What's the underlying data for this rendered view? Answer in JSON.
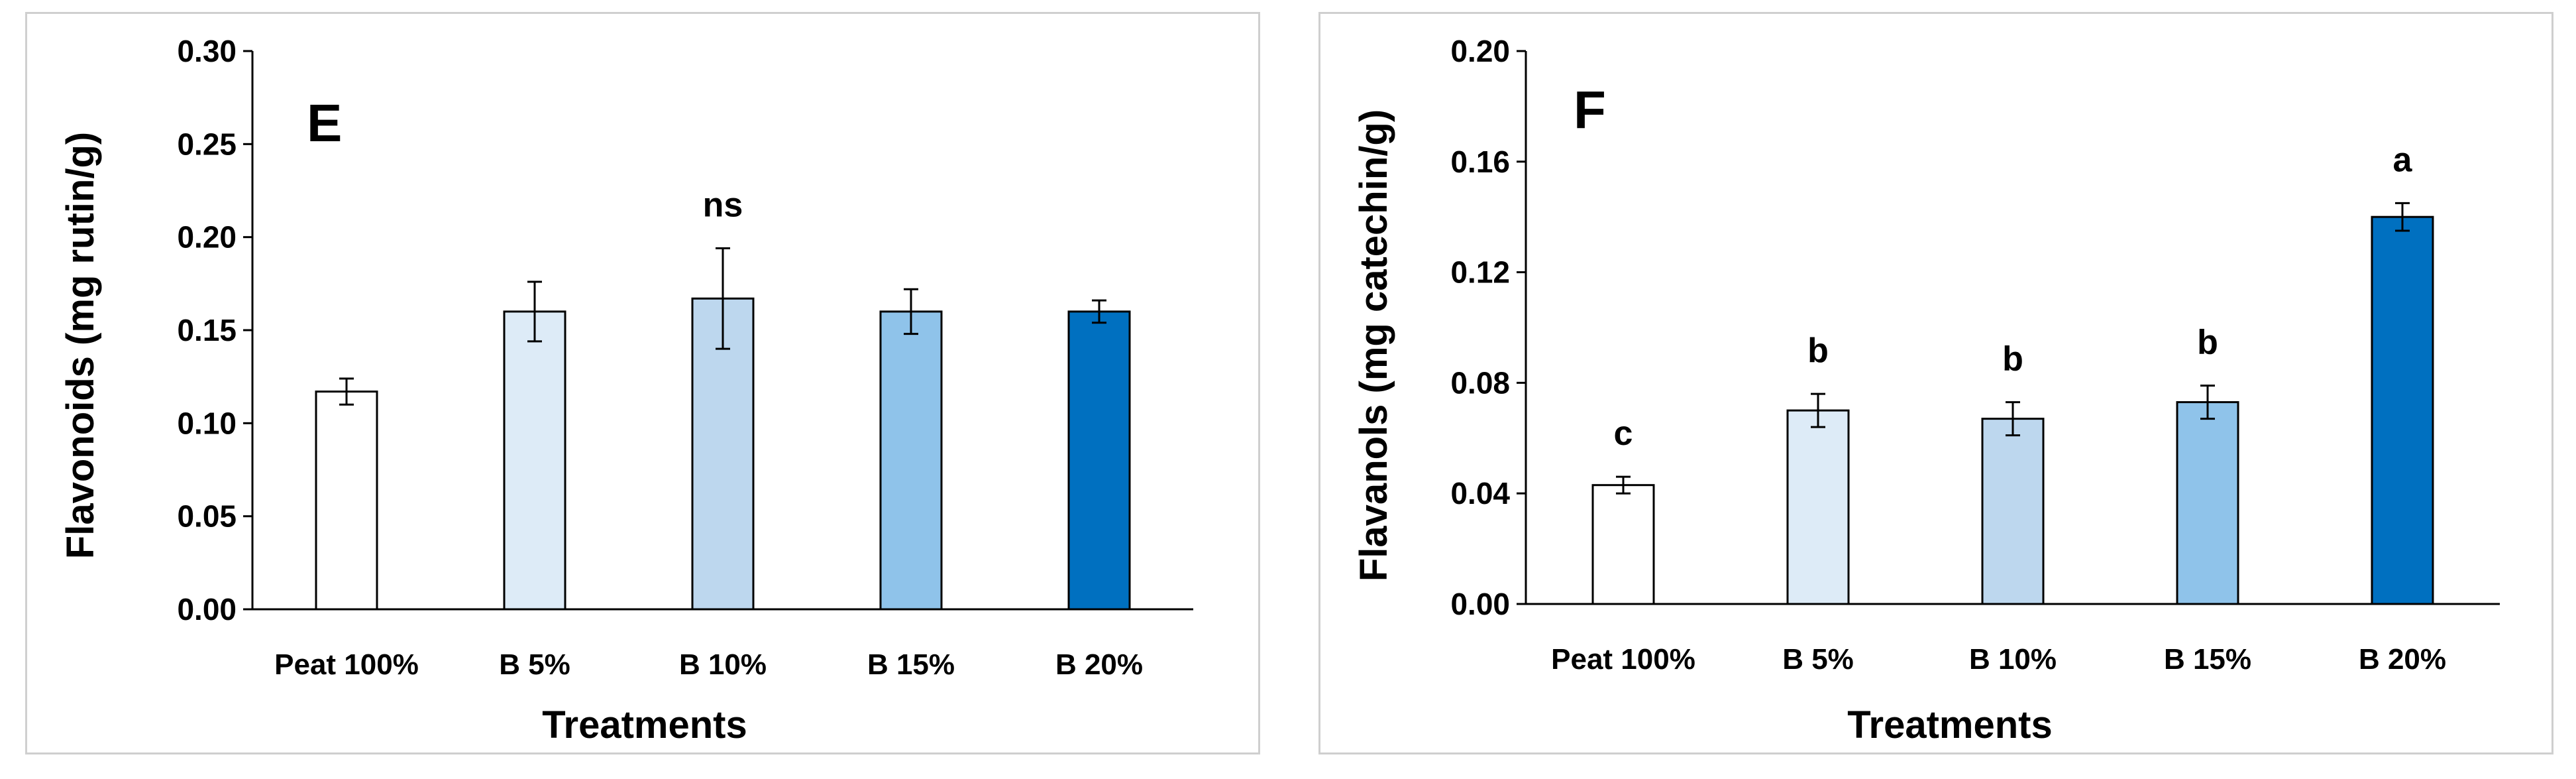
{
  "chart_data": [
    {
      "type": "bar",
      "panel_label": "E",
      "title": "",
      "xlabel": "Treatments",
      "ylabel": "Flavonoids (mg rutin/g)",
      "categories": [
        "Peat 100%",
        "B 5%",
        "B 10%",
        "B 15%",
        "B 20%"
      ],
      "values": [
        0.117,
        0.16,
        0.167,
        0.16,
        0.16
      ],
      "errors": [
        0.007,
        0.016,
        0.027,
        0.012,
        0.006
      ],
      "significance": [
        "",
        "",
        "ns",
        "",
        ""
      ],
      "ylim": [
        0,
        0.3
      ],
      "yticks": [
        "0.00",
        "0.05",
        "0.10",
        "0.15",
        "0.20",
        "0.25",
        "0.30"
      ],
      "bar_colors": [
        "#ffffff",
        "#ddebf7",
        "#bdd7ee",
        "#8fc3ea",
        "#0070c0"
      ],
      "grid": false
    },
    {
      "type": "bar",
      "panel_label": "F",
      "title": "",
      "xlabel": "Treatments",
      "ylabel": "Flavanols (mg catechin/g)",
      "categories": [
        "Peat 100%",
        "B 5%",
        "B 10%",
        "B 15%",
        "B 20%"
      ],
      "values": [
        0.043,
        0.07,
        0.067,
        0.073,
        0.14
      ],
      "errors": [
        0.003,
        0.006,
        0.006,
        0.006,
        0.005
      ],
      "significance": [
        "c",
        "b",
        "b",
        "b",
        "a"
      ],
      "ylim": [
        0,
        0.2
      ],
      "yticks": [
        "0.00",
        "0.04",
        "0.08",
        "0.12",
        "0.16",
        "0.20"
      ],
      "bar_colors": [
        "#ffffff",
        "#ddebf7",
        "#bdd7ee",
        "#8fc3ea",
        "#0070c0"
      ],
      "grid": false
    }
  ]
}
